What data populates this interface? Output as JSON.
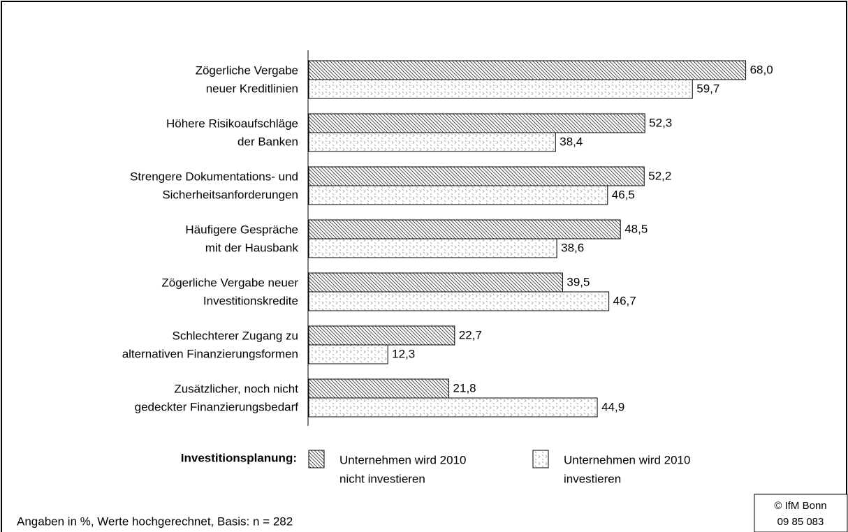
{
  "chart_data": {
    "type": "barh",
    "categories": [
      [
        "Zögerliche Vergabe",
        "neuer Kreditlinien"
      ],
      [
        "Höhere Risikoaufschläge",
        "der Banken"
      ],
      [
        "Strengere Dokumentations- und",
        "Sicherheitsanforderungen"
      ],
      [
        "Häufigere Gespräche",
        "mit der Hausbank"
      ],
      [
        "Zögerliche Vergabe neuer",
        "Investitionskredite"
      ],
      [
        "Schlechterer Zugang zu",
        "alternativen Finanzierungsformen"
      ],
      [
        "Zusätzlicher, noch nicht",
        "gedeckter Finanzierungsbedarf"
      ]
    ],
    "legend_title": "Investitionsplanung:",
    "series": [
      {
        "name": [
          "Unternehmen wird 2010",
          "nicht investieren"
        ],
        "color": "#000000",
        "values": [
          68.0,
          52.3,
          52.2,
          48.5,
          39.5,
          22.7,
          21.8
        ],
        "value_labels": [
          "68,0",
          "52,3",
          "52,2",
          "48,5",
          "39,5",
          "22,7",
          "21,8"
        ]
      },
      {
        "name": [
          "Unternehmen wird 2010",
          "investieren"
        ],
        "color": "#000000",
        "values": [
          59.7,
          38.4,
          46.5,
          38.6,
          46.7,
          12.3,
          44.9
        ],
        "value_labels": [
          "59,7",
          "38,4",
          "46,5",
          "38,6",
          "46,7",
          "12,3",
          "44,9"
        ]
      }
    ],
    "note": "Angaben in %, Werte hochgerechnet, Basis: n = 282",
    "source": [
      "© IfM Bonn",
      "09  85  083"
    ]
  }
}
